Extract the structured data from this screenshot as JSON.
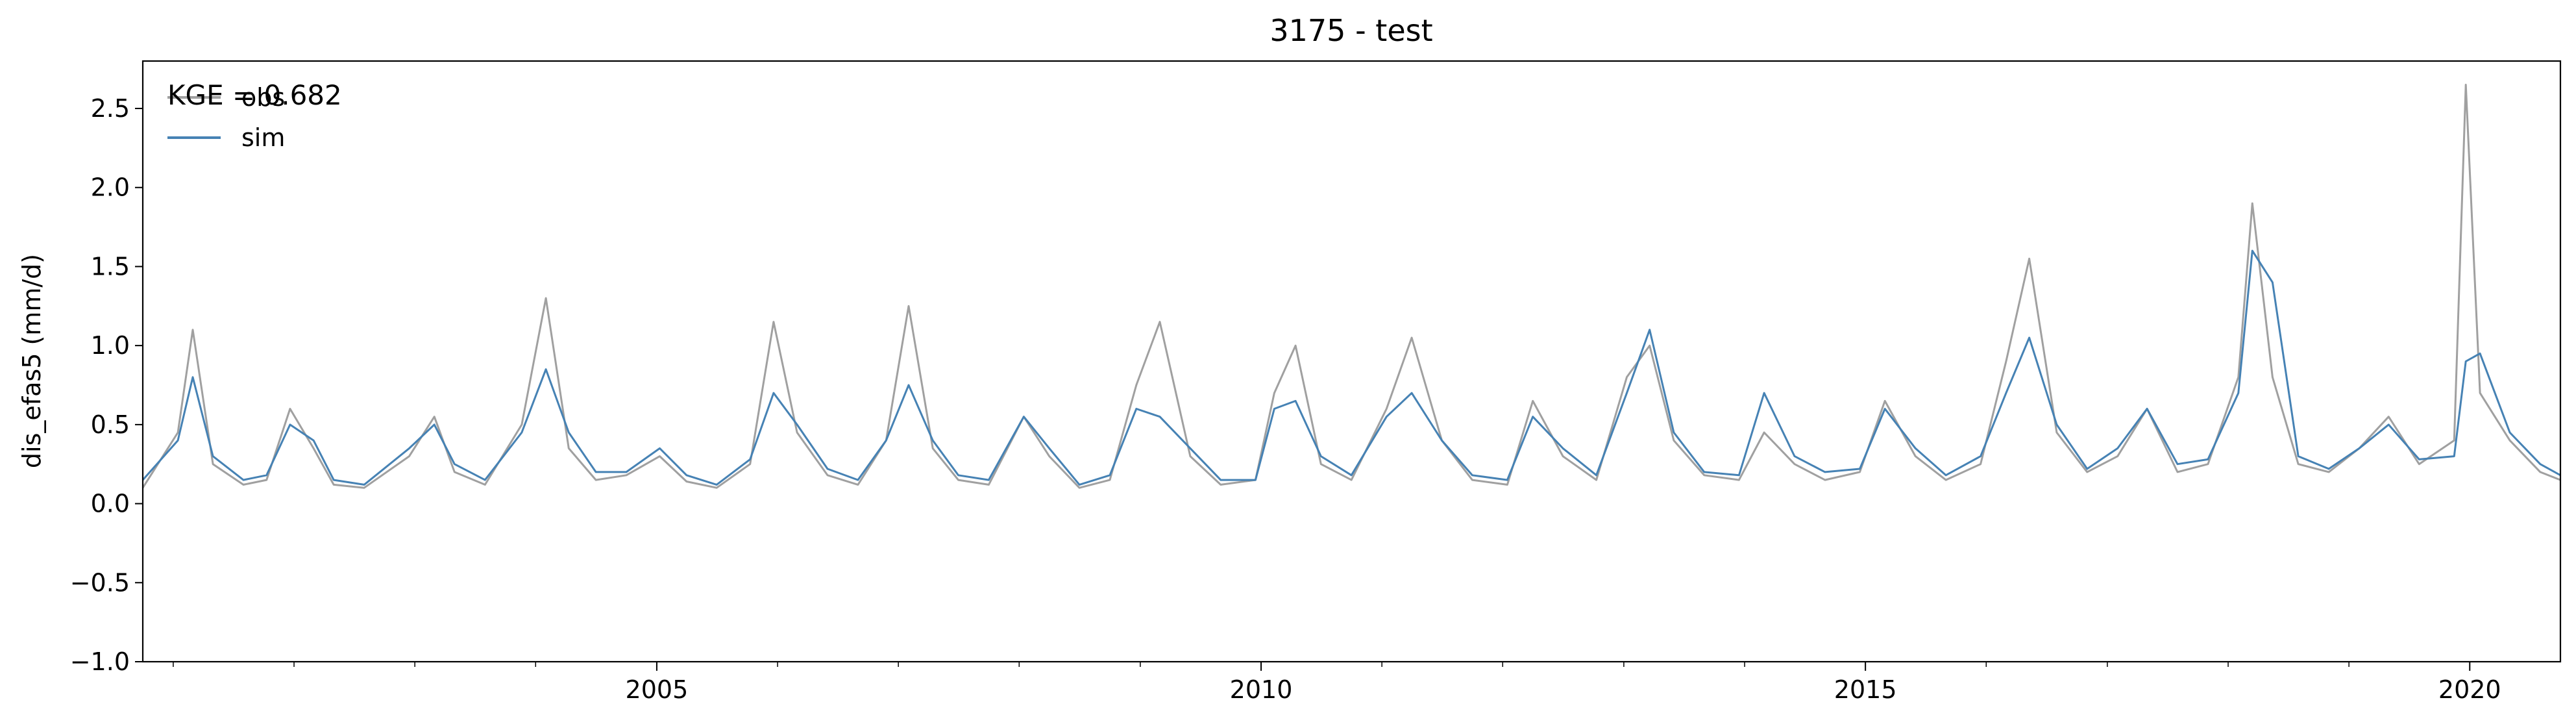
{
  "chart_data": {
    "type": "line",
    "title": "3175 - test",
    "xlabel": "",
    "ylabel": "dis_efas5 (mm/d)",
    "xlim": [
      "2000-10-01",
      "2020-10-01"
    ],
    "ylim": [
      -1.0,
      2.8
    ],
    "x_ticks": [
      {
        "date": "2005-01-01",
        "label": "2005"
      },
      {
        "date": "2010-01-01",
        "label": "2010"
      },
      {
        "date": "2015-01-01",
        "label": "2015"
      },
      {
        "date": "2020-01-01",
        "label": "2020"
      }
    ],
    "y_ticks": [
      {
        "value": -1.0,
        "label": "−1.0"
      },
      {
        "value": -0.5,
        "label": "−0.5"
      },
      {
        "value": 0.0,
        "label": "0.0"
      },
      {
        "value": 0.5,
        "label": "0.5"
      },
      {
        "value": 1.0,
        "label": "1.0"
      },
      {
        "value": 1.5,
        "label": "1.5"
      },
      {
        "value": 2.0,
        "label": "2.0"
      },
      {
        "value": 2.5,
        "label": "2.5"
      }
    ],
    "grid": false,
    "legend_position": "top-left",
    "annotation": "KGE = 0.682",
    "series": [
      {
        "name": "obs",
        "color": "#a0a0a0",
        "x": [
          "2000-10-01",
          "2001-01-15",
          "2001-03-01",
          "2001-05-01",
          "2001-08-01",
          "2001-10-10",
          "2001-12-20",
          "2002-03-01",
          "2002-05-01",
          "2002-08-01",
          "2002-12-15",
          "2003-03-01",
          "2003-05-01",
          "2003-08-01",
          "2003-11-20",
          "2004-02-01",
          "2004-04-10",
          "2004-07-01",
          "2004-10-01",
          "2005-01-10",
          "2005-04-01",
          "2005-07-01",
          "2005-10-10",
          "2005-12-20",
          "2006-03-01",
          "2006-06-01",
          "2006-09-01",
          "2006-11-25",
          "2007-02-01",
          "2007-04-15",
          "2007-07-01",
          "2007-10-01",
          "2008-01-15",
          "2008-04-01",
          "2008-07-01",
          "2008-10-01",
          "2008-12-20",
          "2009-03-01",
          "2009-06-01",
          "2009-09-01",
          "2009-12-15",
          "2010-02-10",
          "2010-04-15",
          "2010-07-01",
          "2010-10-01",
          "2011-01-15",
          "2011-04-01",
          "2011-07-01",
          "2011-10-01",
          "2012-01-15",
          "2012-04-01",
          "2012-07-01",
          "2012-10-10",
          "2013-01-10",
          "2013-03-20",
          "2013-06-01",
          "2013-09-01",
          "2013-12-15",
          "2014-03-01",
          "2014-06-01",
          "2014-09-01",
          "2014-12-15",
          "2015-03-01",
          "2015-06-01",
          "2015-09-01",
          "2015-12-15",
          "2016-03-01",
          "2016-05-10",
          "2016-08-01",
          "2016-11-01",
          "2017-02-01",
          "2017-05-01",
          "2017-08-01",
          "2017-11-01",
          "2018-02-01",
          "2018-03-15",
          "2018-05-15",
          "2018-08-01",
          "2018-11-01",
          "2019-02-01",
          "2019-05-01",
          "2019-08-01",
          "2019-11-15",
          "2019-12-20",
          "2020-02-01",
          "2020-05-01",
          "2020-08-01",
          "2020-10-01"
        ],
        "values": [
          0.1,
          0.45,
          1.1,
          0.25,
          0.12,
          0.15,
          0.6,
          0.35,
          0.12,
          0.1,
          0.3,
          0.55,
          0.2,
          0.12,
          0.5,
          1.3,
          0.35,
          0.15,
          0.18,
          0.3,
          0.14,
          0.1,
          0.25,
          1.15,
          0.45,
          0.18,
          0.12,
          0.4,
          1.25,
          0.35,
          0.15,
          0.12,
          0.55,
          0.3,
          0.1,
          0.15,
          0.75,
          1.15,
          0.3,
          0.12,
          0.15,
          0.7,
          1.0,
          0.25,
          0.15,
          0.6,
          1.05,
          0.4,
          0.15,
          0.12,
          0.65,
          0.3,
          0.15,
          0.8,
          1.0,
          0.4,
          0.18,
          0.15,
          0.45,
          0.25,
          0.15,
          0.2,
          0.65,
          0.3,
          0.15,
          0.25,
          0.9,
          1.55,
          0.45,
          0.2,
          0.3,
          0.6,
          0.2,
          0.25,
          0.8,
          1.9,
          0.8,
          0.25,
          0.2,
          0.35,
          0.55,
          0.25,
          0.4,
          2.65,
          0.7,
          0.4,
          0.2,
          0.15
        ]
      },
      {
        "name": "sim",
        "color": "#4682b4",
        "x": [
          "2000-10-01",
          "2001-01-15",
          "2001-03-01",
          "2001-05-01",
          "2001-08-01",
          "2001-10-10",
          "2001-12-20",
          "2002-03-01",
          "2002-05-01",
          "2002-08-01",
          "2002-12-15",
          "2003-03-01",
          "2003-05-01",
          "2003-08-01",
          "2003-11-20",
          "2004-02-01",
          "2004-04-10",
          "2004-07-01",
          "2004-10-01",
          "2005-01-10",
          "2005-04-01",
          "2005-07-01",
          "2005-10-10",
          "2005-12-20",
          "2006-03-01",
          "2006-06-01",
          "2006-09-01",
          "2006-11-25",
          "2007-02-01",
          "2007-04-15",
          "2007-07-01",
          "2007-10-01",
          "2008-01-15",
          "2008-04-01",
          "2008-07-01",
          "2008-10-01",
          "2008-12-20",
          "2009-03-01",
          "2009-06-01",
          "2009-09-01",
          "2009-12-15",
          "2010-02-10",
          "2010-04-15",
          "2010-07-01",
          "2010-10-01",
          "2011-01-15",
          "2011-04-01",
          "2011-07-01",
          "2011-10-01",
          "2012-01-15",
          "2012-04-01",
          "2012-07-01",
          "2012-10-10",
          "2013-01-10",
          "2013-03-20",
          "2013-06-01",
          "2013-09-01",
          "2013-12-15",
          "2014-03-01",
          "2014-06-01",
          "2014-09-01",
          "2014-12-15",
          "2015-03-01",
          "2015-06-01",
          "2015-09-01",
          "2015-12-15",
          "2016-03-01",
          "2016-05-10",
          "2016-08-01",
          "2016-11-01",
          "2017-02-01",
          "2017-05-01",
          "2017-08-01",
          "2017-11-01",
          "2018-02-01",
          "2018-03-15",
          "2018-05-15",
          "2018-08-01",
          "2018-11-01",
          "2019-02-01",
          "2019-05-01",
          "2019-08-01",
          "2019-11-15",
          "2019-12-20",
          "2020-02-01",
          "2020-05-01",
          "2020-08-01",
          "2020-10-01"
        ],
        "values": [
          0.15,
          0.4,
          0.8,
          0.3,
          0.15,
          0.18,
          0.5,
          0.4,
          0.15,
          0.12,
          0.35,
          0.5,
          0.25,
          0.15,
          0.45,
          0.85,
          0.45,
          0.2,
          0.2,
          0.35,
          0.18,
          0.12,
          0.28,
          0.7,
          0.5,
          0.22,
          0.15,
          0.4,
          0.75,
          0.4,
          0.18,
          0.15,
          0.55,
          0.35,
          0.12,
          0.18,
          0.6,
          0.55,
          0.35,
          0.15,
          0.15,
          0.6,
          0.65,
          0.3,
          0.18,
          0.55,
          0.7,
          0.4,
          0.18,
          0.15,
          0.55,
          0.35,
          0.18,
          0.7,
          1.1,
          0.45,
          0.2,
          0.18,
          0.7,
          0.3,
          0.2,
          0.22,
          0.6,
          0.35,
          0.18,
          0.3,
          0.7,
          1.05,
          0.5,
          0.22,
          0.35,
          0.6,
          0.25,
          0.28,
          0.7,
          1.6,
          1.4,
          0.3,
          0.22,
          0.35,
          0.5,
          0.28,
          0.3,
          0.9,
          0.95,
          0.45,
          0.25,
          0.18
        ]
      }
    ]
  }
}
